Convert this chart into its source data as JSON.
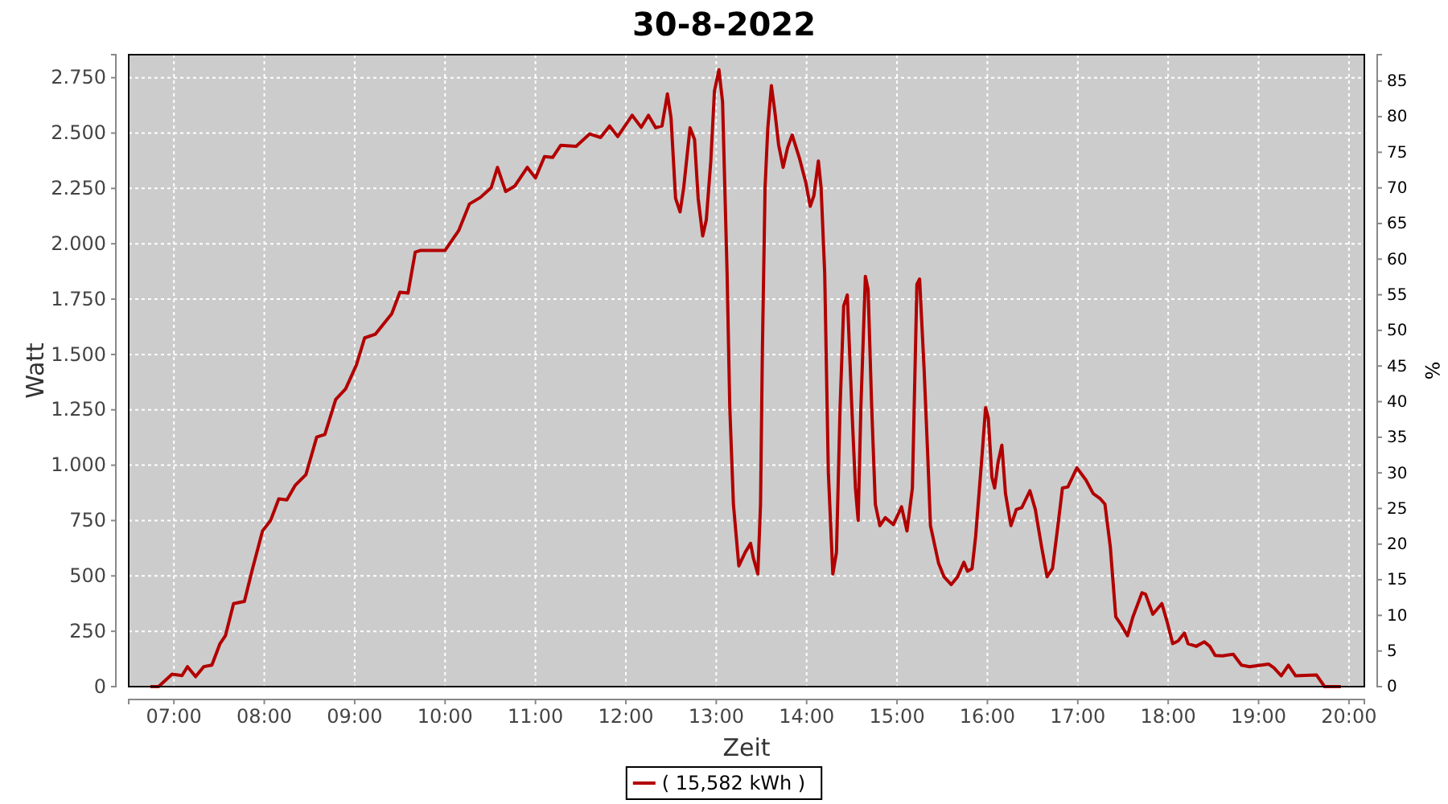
{
  "chart_data": {
    "type": "line",
    "title": "30-8-2022",
    "xlabel": "Zeit",
    "ylabel": "Watt",
    "y2label": "%",
    "xlim": [
      6.5,
      20.17
    ],
    "xticks": [
      {
        "value": 7,
        "label": "07:00"
      },
      {
        "value": 8,
        "label": "08:00"
      },
      {
        "value": 9,
        "label": "09:00"
      },
      {
        "value": 10,
        "label": "10:00"
      },
      {
        "value": 11,
        "label": "11:00"
      },
      {
        "value": 12,
        "label": "12:00"
      },
      {
        "value": 13,
        "label": "13:00"
      },
      {
        "value": 14,
        "label": "14:00"
      },
      {
        "value": 15,
        "label": "15:00"
      },
      {
        "value": 16,
        "label": "16:00"
      },
      {
        "value": 17,
        "label": "17:00"
      },
      {
        "value": 18,
        "label": "18:00"
      },
      {
        "value": 19,
        "label": "19:00"
      },
      {
        "value": 20,
        "label": "20:00"
      }
    ],
    "ylim": [
      0,
      2854
    ],
    "yticks": [
      0,
      250,
      500,
      750,
      {
        "value": 1000,
        "label": "1.000"
      },
      {
        "value": 1250,
        "label": "1.250"
      },
      {
        "value": 1500,
        "label": "1.500"
      },
      {
        "value": 1750,
        "label": "1.750"
      },
      {
        "value": 2000,
        "label": "2.000"
      },
      {
        "value": 2250,
        "label": "2.250"
      },
      {
        "value": 2500,
        "label": "2.500"
      },
      {
        "value": 2750,
        "label": "2.750"
      }
    ],
    "y2lim": [
      0,
      88.7
    ],
    "y2ticks": [
      0,
      5,
      10,
      15,
      20,
      25,
      30,
      35,
      40,
      45,
      50,
      55,
      60,
      65,
      70,
      75,
      80,
      85
    ],
    "grid": true,
    "legend": "bottom",
    "marker": "none",
    "line_style": "solid",
    "series": [
      {
        "name": "( 15,582 kWh )",
        "color": "#b20000",
        "x": [
          6.74,
          6.83,
          6.98,
          7.09,
          7.15,
          7.24,
          7.33,
          7.42,
          7.51,
          7.57,
          7.66,
          7.78,
          7.87,
          7.98,
          8.07,
          8.16,
          8.25,
          8.34,
          8.46,
          8.58,
          8.67,
          8.79,
          8.9,
          9.02,
          9.11,
          9.23,
          9.41,
          9.5,
          9.59,
          9.67,
          9.73,
          10.0,
          10.15,
          10.27,
          10.39,
          10.51,
          10.58,
          10.67,
          10.77,
          10.91,
          11.0,
          11.1,
          11.19,
          11.28,
          11.45,
          11.6,
          11.72,
          11.82,
          11.91,
          12.07,
          12.17,
          12.25,
          12.33,
          12.4,
          12.46,
          12.5,
          12.55,
          12.6,
          12.64,
          12.71,
          12.76,
          12.8,
          12.85,
          12.89,
          12.94,
          12.98,
          13.03,
          13.07,
          13.12,
          13.15,
          13.19,
          13.25,
          13.32,
          13.38,
          13.41,
          13.46,
          13.49,
          13.51,
          13.54,
          13.57,
          13.61,
          13.65,
          13.69,
          13.74,
          13.79,
          13.84,
          13.92,
          13.99,
          14.04,
          14.08,
          14.13,
          14.16,
          14.2,
          14.24,
          14.29,
          14.33,
          14.37,
          14.41,
          14.45,
          14.5,
          14.54,
          14.57,
          14.6,
          14.65,
          14.68,
          14.72,
          14.76,
          14.81,
          14.87,
          14.96,
          15.05,
          15.11,
          15.17,
          15.22,
          15.25,
          15.3,
          15.34,
          15.37,
          15.46,
          15.52,
          15.6,
          15.67,
          15.74,
          15.78,
          15.83,
          15.87,
          15.94,
          15.98,
          16.01,
          16.05,
          16.08,
          16.12,
          16.16,
          16.2,
          16.26,
          16.32,
          16.38,
          16.47,
          16.53,
          16.6,
          16.66,
          16.72,
          16.78,
          16.83,
          16.89,
          16.99,
          17.09,
          17.17,
          17.25,
          17.3,
          17.36,
          17.42,
          17.48,
          17.55,
          17.61,
          17.71,
          17.75,
          17.83,
          17.93,
          17.99,
          18.05,
          18.11,
          18.18,
          18.22,
          18.31,
          18.4,
          18.46,
          18.52,
          18.6,
          18.72,
          18.81,
          18.9,
          19.11,
          19.17,
          19.25,
          19.33,
          19.41,
          19.64,
          19.73,
          19.91
        ],
        "values": [
          0,
          0,
          56,
          50,
          90,
          45,
          90,
          97,
          194,
          230,
          375,
          385,
          533,
          703,
          751,
          848,
          843,
          908,
          957,
          1127,
          1139,
          1297,
          1345,
          1454,
          1575,
          1592,
          1684,
          1781,
          1777,
          1962,
          1970,
          1970,
          2059,
          2180,
          2209,
          2253,
          2345,
          2236,
          2260,
          2345,
          2297,
          2394,
          2390,
          2445,
          2440,
          2496,
          2480,
          2532,
          2484,
          2580,
          2526,
          2580,
          2524,
          2532,
          2677,
          2568,
          2205,
          2144,
          2253,
          2524,
          2471,
          2205,
          2035,
          2108,
          2374,
          2689,
          2786,
          2641,
          1866,
          1260,
          824,
          545,
          606,
          647,
          582,
          509,
          824,
          1502,
          2253,
          2520,
          2714,
          2592,
          2447,
          2345,
          2435,
          2491,
          2387,
          2278,
          2169,
          2217,
          2374,
          2253,
          1866,
          969,
          509,
          606,
          1260,
          1720,
          1769,
          1260,
          897,
          751,
          1260,
          1853,
          1793,
          1260,
          824,
          727,
          763,
          732,
          812,
          703,
          897,
          1817,
          1841,
          1430,
          1042,
          727,
          557,
          496,
          461,
          496,
          562,
          521,
          533,
          679,
          1042,
          1260,
          1212,
          945,
          897,
          1018,
          1090,
          872,
          727,
          800,
          808,
          885,
          800,
          630,
          496,
          533,
          727,
          897,
          902,
          988,
          933,
          872,
          848,
          824,
          630,
          315,
          279,
          230,
          315,
          424,
          417,
          327,
          375,
          290,
          194,
          206,
          242,
          194,
          182,
          202,
          182,
          141,
          139,
          146,
          97,
          90,
          102,
          85,
          49,
          97,
          49,
          53,
          0,
          0
        ]
      }
    ]
  }
}
